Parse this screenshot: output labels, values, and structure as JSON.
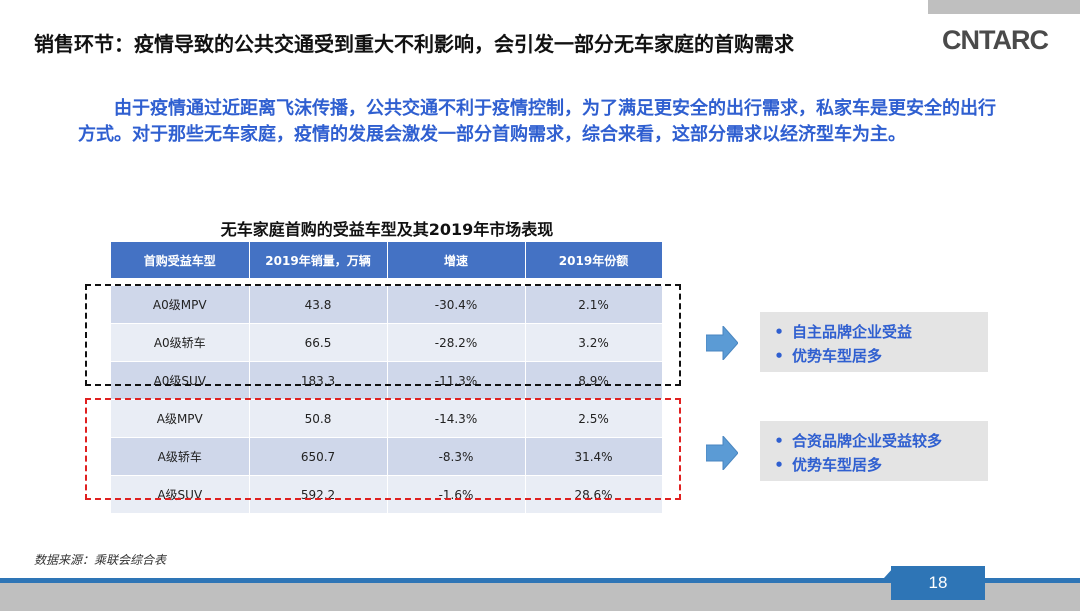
{
  "header": {
    "title": "销售环节：疫情导致的公共交通受到重大不利影响，会引发一部分无车家庭的首购需求",
    "logo_text": "CNTARC"
  },
  "intro": "由于疫情通过近距离飞沫传播，公共交通不利于疫情控制，为了满足更安全的出行需求，私家车是更安全的出行方式。对于那些无车家庭，疫情的发展会激发一部分首购需求，综合来看，这部分需求以经济型车为主。",
  "table": {
    "caption": "无车家庭首购的受益车型及其2019年市场表现",
    "headers": [
      "首购受益车型",
      "2019年销量，万辆",
      "增速",
      "2019年份额"
    ],
    "group1": [
      [
        "A0级MPV",
        "43.8",
        "-30.4%",
        "2.1%"
      ],
      [
        "A0级轿车",
        "66.5",
        "-28.2%",
        "3.2%"
      ],
      [
        "A0级SUV",
        "183.3",
        "-11.3%",
        "8.9%"
      ]
    ],
    "group2": [
      [
        "A级MPV",
        "50.8",
        "-14.3%",
        "2.5%"
      ],
      [
        "A级轿车",
        "650.7",
        "-8.3%",
        "31.4%"
      ],
      [
        "A级SUV",
        "592.2",
        "-1.6%",
        "28.6%"
      ]
    ]
  },
  "notes": {
    "group1": {
      "bullet": "•",
      "items": [
        "自主品牌企业受益",
        "优势车型居多"
      ]
    },
    "group2": {
      "bullet": "•",
      "items": [
        "合资品牌企业受益较多",
        "优势车型居多"
      ]
    }
  },
  "footer": {
    "source": "数据来源：乘联会综合表",
    "page_number": "18"
  },
  "colors": {
    "header_blue": "#4472c4",
    "text_blue": "#2f5fd0",
    "footer_blue": "#2e75b6",
    "row_dark": "#cfd7ea",
    "row_light": "#e9edf5",
    "red_dash": "#e02020"
  }
}
